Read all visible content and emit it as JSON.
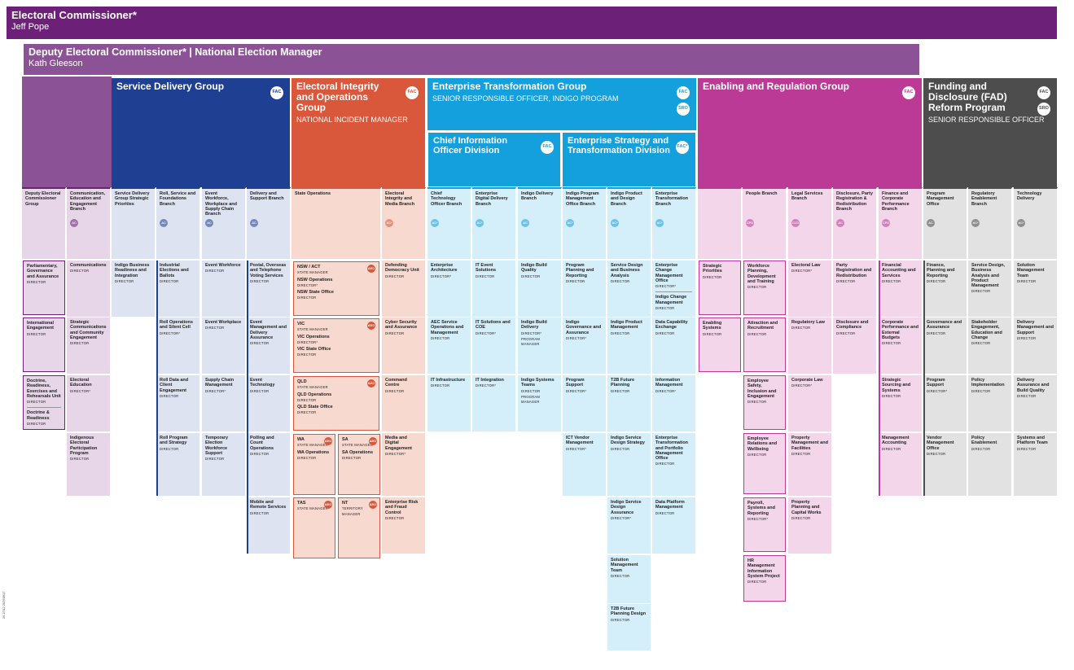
{
  "colors": {
    "purple": "#6d2077",
    "purple2": "#8b5396",
    "purple_light": "#e6d6e8",
    "navy": "#1f3f93",
    "navy_light": "#dde3f0",
    "orange": "#d9573a",
    "orange_light": "#f8d9cf",
    "blue": "#14a0dc",
    "blue_light": "#d4eefa",
    "magenta": "#bb3a96",
    "magenta_light": "#f3d6ea",
    "grey": "#4d4d4d",
    "grey_light": "#e2e2e2"
  },
  "footer": {
    "code": "25-2742 20250917"
  },
  "top": {
    "commissioner": {
      "title": "Electoral Commissioner*",
      "name": "Jeff Pope"
    },
    "deputy": {
      "title": "Deputy Electoral Commissioner* | National Election Manager",
      "name": "Kath Gleeson"
    }
  },
  "groups": [
    {
      "key": "sdg",
      "title": "Service Delivery Group",
      "sub": "",
      "pills": [
        "FAC"
      ]
    },
    {
      "key": "eiog",
      "title": "Electoral Integrity and Operations Group",
      "sub": "NATIONAL INCIDENT MANAGER",
      "pills": [
        "FAC"
      ]
    },
    {
      "key": "etg",
      "title": "Enterprise Transformation Group",
      "sub": "SENIOR RESPONSIBLE OFFICER, INDIGO PROGRAM",
      "pills": [
        "FAC",
        "SRO"
      ]
    },
    {
      "key": "erg",
      "title": "Enabling and Regulation Group",
      "sub": "",
      "pills": [
        "FAC"
      ]
    },
    {
      "key": "fad",
      "title": "Funding and Disclosure (FAD) Reform Program",
      "sub": "SENIOR RESPONSIBLE OFFICER",
      "pills": [
        "FAC",
        "SRO"
      ]
    }
  ],
  "divisions": [
    {
      "key": "cio",
      "title": "Chief Information Officer Division",
      "pill": "FAC"
    },
    {
      "key": "est",
      "title": "Enterprise Strategy and Transformation Division",
      "pill": "FAC*"
    }
  ],
  "columns": [
    {
      "col": "dec",
      "branch": {
        "title": "Deputy Electoral Commissioner Group"
      },
      "cells": [
        {
          "title": "Parliamentary, Governance and Assurance",
          "role": "DIRECTOR"
        },
        {
          "title": "International Engagement",
          "role": "DIRECTOR"
        },
        {
          "title": "Doctrine, Readiness, Exercises and Rehearsals Unit",
          "role": "DIRECTOR",
          "title2": "Doctrine & Readiness",
          "role2": "DIRECTOR"
        }
      ]
    },
    {
      "col": "cee",
      "branch": {
        "title": "Communication, Education and Engagement Branch",
        "badge": "AC"
      },
      "cells": [
        {
          "title": "Communications",
          "role": "DIRECTOR"
        },
        {
          "title": "Strategic Communications and Community Engagement",
          "role": "DIRECTOR"
        },
        {
          "title": "Electoral Education",
          "role": "DIRECTOR*"
        },
        {
          "title": "Indigenous Electoral Participation Program",
          "role": "DIRECTOR"
        }
      ]
    },
    {
      "col": "sdsp",
      "branch": {
        "title": "Service Delivery Group Strategic Priorities"
      },
      "cells": [
        {
          "title": "Indigo Business Readiness and Integration",
          "role": "DIRECTOR"
        }
      ]
    },
    {
      "col": "rsf",
      "branch": {
        "title": "Roll, Service and Foundations Branch",
        "badge": "AC"
      },
      "cells": [
        {
          "title": "Industrial Elections and Ballots",
          "role": "DIRECTOR"
        },
        {
          "title": "Roll Operations and Silent Cell",
          "role": "DIRECTOR*"
        },
        {
          "title": "Roll Data and Client Engagement",
          "role": "DIRECTOR"
        },
        {
          "title": "Roll Program and Strategy",
          "role": "DIRECTOR"
        }
      ]
    },
    {
      "col": "ew",
      "branch": {
        "title": "Event Workforce, Workplace and Supply Chain Branch",
        "badge": "AC"
      },
      "cells": [
        {
          "title": "Event Workforce",
          "role": "DIRECTOR"
        },
        {
          "title": "Event Workplace",
          "role": "DIRECTOR"
        },
        {
          "title": "Supply Chain Management",
          "role": "DIRECTOR*"
        },
        {
          "title": "Temporary Election Workforce Support",
          "role": "DIRECTOR"
        }
      ]
    },
    {
      "col": "ds",
      "branch": {
        "title": "Delivery and Support Branch",
        "badge": "AC"
      },
      "cells": [
        {
          "title": "Postal, Overseas and Telephone Voting Services",
          "role": "DIRECTOR"
        },
        {
          "title": "Event Management and Delivery Assurance",
          "role": "DIRECTOR"
        },
        {
          "title": "Event Technology",
          "role": "DIRECTOR"
        },
        {
          "title": "Polling and Count Operations",
          "role": "DIRECTOR"
        },
        {
          "title": "Mobile and Remote Services",
          "role": "DIRECTOR"
        }
      ]
    },
    {
      "col": "so",
      "branch": {
        "title": "State Operations"
      },
      "cells": [
        {
          "title": "NSW / ACT",
          "role": "STATE MANAGER",
          "aeo": true,
          "items": [
            {
              "t": "NSW Operations",
              "r": "DIRECTOR*"
            },
            {
              "t": "NSW State Office",
              "r": "DIRECTOR"
            }
          ]
        },
        {
          "title": "VIC",
          "role": "STATE MANAGER",
          "aeo": true,
          "items": [
            {
              "t": "VIC Operations",
              "r": "DIRECTOR*"
            },
            {
              "t": "VIC State Office",
              "r": "DIRECTOR"
            }
          ]
        },
        {
          "title": "QLD",
          "role": "STATE MANAGER",
          "aeo": true,
          "items": [
            {
              "t": "QLD Operations",
              "r": "DIRECTOR"
            },
            {
              "t": "QLD State Office",
              "r": "DIRECTOR"
            }
          ]
        }
      ],
      "halves": [
        {
          "title": "WA",
          "role": "STATE MANAGER",
          "aeo": true,
          "items": [
            {
              "t": "WA Operations",
              "r": "DIRECTOR"
            }
          ]
        },
        {
          "title": "SA",
          "role": "STATE MANAGER",
          "aeo": true,
          "items": [
            {
              "t": "SA Operations",
              "r": "DIRECTOR"
            }
          ]
        },
        {
          "title": "TAS",
          "role": "STATE MANAGER",
          "aeo": true,
          "items": []
        },
        {
          "title": "NT",
          "role": "TERRITORY MANAGER",
          "aeo": true,
          "items": []
        }
      ]
    },
    {
      "col": "eim",
      "branch": {
        "title": "Electoral Integrity and Media Branch",
        "badge": "AC*"
      },
      "cells": [
        {
          "title": "Defending Democracy Unit",
          "role": "DIRECTOR"
        },
        {
          "title": "Cyber Security and Assurance",
          "role": "DIRECTOR"
        },
        {
          "title": "Command Centre",
          "role": "DIRECTOR"
        },
        {
          "title": "Media and Digital Engagement",
          "role": "DIRECTOR*"
        },
        {
          "title": "Enterprise Risk and Fraud Control",
          "role": "DIRECTOR"
        }
      ]
    },
    {
      "col": "cto",
      "branch": {
        "title": "Chief Technology Officer Branch",
        "badge": "AC*"
      },
      "cells": [
        {
          "title": "Enterprise Architecture",
          "role": "DIRECTOR*"
        },
        {
          "title": "AEC Service Operations and Management",
          "role": "DIRECTOR"
        },
        {
          "title": "IT Infrastructure",
          "role": "DIRECTOR"
        }
      ]
    },
    {
      "col": "edd",
      "branch": {
        "title": "Enterprise Digital Delivery Branch",
        "badge": "AC*"
      },
      "cells": [
        {
          "title": "IT Event Solutions",
          "role": "DIRECTOR"
        },
        {
          "title": "IT Solutions and COE",
          "role": "DIRECTOR*"
        },
        {
          "title": "IT Integration",
          "role": "DIRECTOR*"
        }
      ]
    },
    {
      "col": "idb",
      "branch": {
        "title": "Indigo Delivery Branch",
        "badge": "AC"
      },
      "cells": [
        {
          "title": "Indigo Build Quality",
          "role": "DIRECTOR"
        },
        {
          "title": "Indigo Build Delivery",
          "role": "DIRECTOR*",
          "role2": "PROGRAM MANAGER"
        },
        {
          "title": "Indigo Systems Teams",
          "role": "DIRECTOR",
          "role2": "PROGRAM MANAGER"
        }
      ]
    },
    {
      "col": "ipmo",
      "branch": {
        "title": "Indigo Program Management Office Branch",
        "badge": "AC*"
      },
      "cells": [
        {
          "title": "Program Planning and Reporting",
          "role": "DIRECTOR"
        },
        {
          "title": "Indigo Governance and Assurance",
          "role": "DIRECTOR*"
        },
        {
          "title": "Program Support",
          "role": "DIRECTOR*"
        },
        {
          "title": "ICT Vendor Management",
          "role": "DIRECTOR*"
        }
      ]
    },
    {
      "col": "ipd",
      "branch": {
        "title": "Indigo Product and Design Branch",
        "badge": "AC*"
      },
      "cells": [
        {
          "title": "Service Design and Business Analysis",
          "role": "DIRECTOR"
        },
        {
          "title": "Indigo Product Management",
          "role": "DIRECTOR"
        },
        {
          "title": "T2B Future Planning",
          "role": "DIRECTOR"
        },
        {
          "title": "Indigo Service Design Strategy",
          "role": "DIRECTOR"
        },
        {
          "title": "Indigo Service Design Assurance",
          "role": "DIRECTOR*"
        },
        {
          "title": "Solution Management Team",
          "role": "DIRECTOR"
        },
        {
          "title": "T2B Future Planning Design",
          "role": "DIRECTOR"
        }
      ]
    },
    {
      "col": "etb",
      "branch": {
        "title": "Enterprise Transformation Branch",
        "badge": "AC*"
      },
      "cells": [
        {
          "title": "Enterprise Change Management Office",
          "role": "DIRECTOR*",
          "title2": "Indigo Change Management",
          "role2": "DIRECTOR"
        },
        {
          "title": "Data Capability Exchange",
          "role": "DIRECTOR"
        },
        {
          "title": "Information Management",
          "role": "DIRECTOR*"
        },
        {
          "title": "Enterprise Transformation and Portfolio Management Office",
          "role": "DIRECTOR"
        },
        {
          "title": "Data Platform Management",
          "role": "DIRECTOR"
        }
      ]
    },
    {
      "col": "ersp",
      "branch": {
        "title": ""
      },
      "cells": [
        {
          "title": "Strategic Priorities",
          "role": "DIRECTOR"
        },
        {
          "title": "Enabling Systems",
          "role": "DIRECTOR"
        }
      ]
    },
    {
      "col": "ppl",
      "branch": {
        "title": "People Branch",
        "badge": "CPO"
      },
      "cells": [
        {
          "title": "Workforce Planning, Development and Training",
          "role": "DIRECTOR"
        },
        {
          "title": "Attraction and Recruitment",
          "role": "DIRECTOR"
        },
        {
          "title": "Employee Safety, Inclusion and Engagement",
          "role": "DIRECTOR"
        },
        {
          "title": "Employee Relations and Wellbeing",
          "role": "DIRECTOR"
        },
        {
          "title": "Payroll, Systems and Reporting",
          "role": "DIRECTOR*"
        },
        {
          "title": "HR Management Information System Project",
          "role": "DIRECTOR"
        }
      ]
    },
    {
      "col": "leg",
      "branch": {
        "title": "Legal Services Branch",
        "badge": "CLO"
      },
      "cells": [
        {
          "title": "Electoral Law",
          "role": "DIRECTOR*"
        },
        {
          "title": "Regulatory Law",
          "role": "DIRECTOR"
        },
        {
          "title": "Corporate Law",
          "role": "DIRECTOR*"
        },
        {
          "title": "Property Management and Facilities",
          "role": "DIRECTOR"
        },
        {
          "title": "Property Planning and Capital Works",
          "role": "DIRECTOR"
        }
      ]
    },
    {
      "col": "dpr",
      "branch": {
        "title": "Disclosure, Party Registration & Redistribution Branch",
        "badge": "AC"
      },
      "cells": [
        {
          "title": "Party Registration and Redistribution",
          "role": "DIRECTOR"
        },
        {
          "title": "Disclosure and Compliance",
          "role": "DIRECTOR"
        }
      ]
    },
    {
      "col": "fin",
      "branch": {
        "title": "Finance and Corporate Performance Branch",
        "badge": "CFO"
      },
      "cells": [
        {
          "title": "Financial Accounting and Services",
          "role": "DIRECTOR"
        },
        {
          "title": "Corporate Performance and External Budgets",
          "role": "DIRECTOR"
        },
        {
          "title": "Strategic Sourcing and Systems",
          "role": "DIRECTOR"
        },
        {
          "title": "Management Accounting",
          "role": "DIRECTOR"
        }
      ]
    },
    {
      "col": "pmo",
      "branch": {
        "title": "Program Management Office",
        "badge": "AC"
      },
      "cells": [
        {
          "title": "Finance, Planning and Reporting",
          "role": "DIRECTOR"
        },
        {
          "title": "Governance and Assurance",
          "role": "DIRECTOR"
        },
        {
          "title": "Program Support",
          "role": "DIRECTOR*"
        },
        {
          "title": "Vendor Management Office",
          "role": "DIRECTOR"
        }
      ]
    },
    {
      "col": "reb",
      "branch": {
        "title": "Regulatory Enablement Branch",
        "badge": "AC*"
      },
      "cells": [
        {
          "title": "Service Design, Business Analysis and Product Management",
          "role": "DIRECTOR"
        },
        {
          "title": "Stakeholder Engagement, Education and Change",
          "role": "DIRECTOR"
        },
        {
          "title": "Policy Implementation",
          "role": "DIRECTOR"
        },
        {
          "title": "Policy Enablement",
          "role": "DIRECTOR"
        }
      ]
    },
    {
      "col": "td",
      "branch": {
        "title": "Technology Delivery",
        "badge": "AC*"
      },
      "cells": [
        {
          "title": "Solution Management Team",
          "role": "DIRECTOR"
        },
        {
          "title": "Delivery Management and Support",
          "role": "DIRECTOR"
        },
        {
          "title": "Delivery Assurance and Build Quality",
          "role": "DIRECTOR"
        },
        {
          "title": "Systems and Platform Team",
          "role": "DIRECTOR"
        }
      ]
    }
  ]
}
